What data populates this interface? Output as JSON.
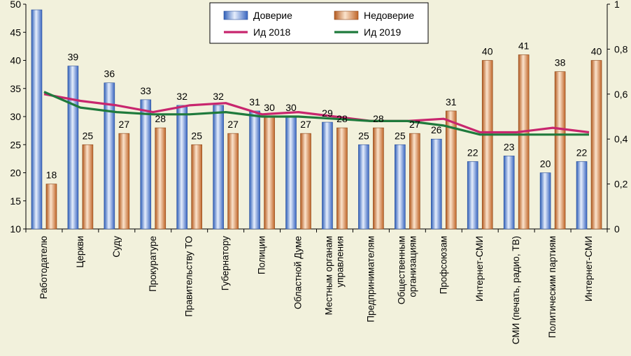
{
  "chart_data": {
    "type": "bar",
    "categories": [
      [
        "Работодателю"
      ],
      [
        "Церкви"
      ],
      [
        "Суду"
      ],
      [
        "Прокуратуре"
      ],
      [
        "Правительству ТО"
      ],
      [
        "Губернатору"
      ],
      [
        "Полиции"
      ],
      [
        "Областной Думе"
      ],
      [
        "Местным органам",
        "управления"
      ],
      [
        "Предпринимателям"
      ],
      [
        "Общественным",
        "организациям"
      ],
      [
        "Профсоюзам"
      ],
      [
        "Интернет-СМИ"
      ],
      [
        "СМИ (печать, радио, ТВ)"
      ],
      [
        "Политическим партиям"
      ],
      [
        "Интернет-СМИ"
      ]
    ],
    "series": [
      {
        "name": "Доверие",
        "kind": "bar",
        "axis": "left",
        "color": "#5b87d6",
        "values": [
          49,
          39,
          36,
          33,
          32,
          32,
          31,
          30,
          29,
          25,
          25,
          26,
          22,
          23,
          20,
          22
        ]
      },
      {
        "name": "Недоверие",
        "kind": "bar",
        "axis": "left",
        "color": "#d98a52",
        "values": [
          18,
          25,
          27,
          28,
          25,
          27,
          30,
          27,
          28,
          28,
          27,
          31,
          40,
          41,
          38,
          40
        ]
      },
      {
        "name": "Ид 2018",
        "kind": "line",
        "axis": "right",
        "color": "#c8266e",
        "values": [
          0.6,
          0.57,
          0.55,
          0.52,
          0.55,
          0.56,
          0.51,
          0.52,
          0.5,
          0.48,
          0.48,
          0.49,
          0.43,
          0.43,
          0.45,
          0.43
        ]
      },
      {
        "name": "Ид 2019",
        "kind": "line",
        "axis": "right",
        "color": "#1f7a3c",
        "values": [
          0.61,
          0.54,
          0.52,
          0.51,
          0.51,
          0.52,
          0.5,
          0.5,
          0.49,
          0.48,
          0.48,
          0.46,
          0.42,
          0.42,
          0.42,
          0.42
        ]
      }
    ],
    "data_labels": {
      "trust": [
        "",
        "39",
        "36",
        "33",
        "32",
        "32",
        "31",
        "30",
        "29",
        "25",
        "25",
        "26",
        "22",
        "23",
        "20",
        "22"
      ],
      "distrust": [
        "18",
        "25",
        "27",
        "28",
        "25",
        "27",
        "30",
        "27",
        "28",
        "28",
        "27",
        "31",
        "40",
        "41",
        "38",
        "40"
      ]
    },
    "y_left": {
      "min": 10,
      "max": 50,
      "ticks": [
        "10",
        "15",
        "20",
        "25",
        "30",
        "35",
        "40",
        "45",
        "50"
      ]
    },
    "y_right": {
      "min": 0,
      "max": 1,
      "ticks": [
        "0",
        "0,2",
        "0,4",
        "0,6",
        "0,8",
        "1"
      ]
    },
    "grid": false,
    "legend": {
      "placement": "top-center",
      "columns": 2
    }
  }
}
